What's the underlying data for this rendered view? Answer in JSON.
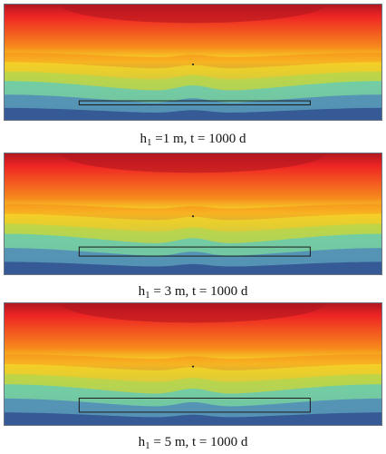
{
  "panels": [
    {
      "caption": {
        "pre": "h",
        "sub": "1",
        "post": " =1 m, t = 1000 d"
      },
      "box_top_fraction": 0.835,
      "box_height_fraction": 0.035
    },
    {
      "caption": {
        "pre": "h",
        "sub": "1",
        "post": " = 3 m, t = 1000 d"
      },
      "box_top_fraction": 0.775,
      "box_height_fraction": 0.075
    },
    {
      "caption": {
        "pre": "h",
        "sub": "1",
        "post": " = 5 m, t = 1000 d"
      },
      "box_top_fraction": 0.78,
      "box_height_fraction": 0.115
    }
  ],
  "colormap": {
    "top": "#b01820",
    "red": "#ee2424",
    "orange": "#f78a1c",
    "yellow": "#f5e62a",
    "green": "#9fdc5a",
    "cyan": "#3cc6e6",
    "blue": "#3e69c6",
    "bottom": "#1b2c7a"
  },
  "box_stroke": "#1a1a1a"
}
